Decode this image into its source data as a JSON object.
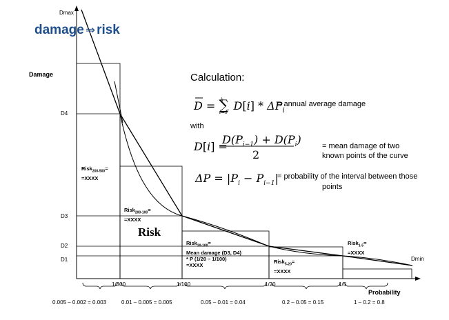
{
  "heading": {
    "left": "damage",
    "arrow": "⇒",
    "right": "risk"
  },
  "axes": {
    "y_top": "Dmax",
    "y_label": "Damage",
    "y_ticks": [
      "D4",
      "D3",
      "D2",
      "D1"
    ],
    "x_label": "Probability",
    "x_ticks": [
      "1/300",
      "1/100",
      "1/20",
      "1/5"
    ],
    "curve_end": "Dmin"
  },
  "calculation": {
    "title": "Calculation:",
    "with": "with",
    "eq1_desc": "= annual average damage",
    "eq2_desc_1": "= mean damage of two",
    "eq2_desc_2": "known points of the curve",
    "eq3_desc_1": "= probability of the interval between those",
    "eq3_desc_2": "points"
  },
  "risk_labels": {
    "r_200_500_a": "Risk",
    "r_200_500_sub": "200-500",
    "r_200_500_b": "=",
    "r_200_500_c": "=XXXX",
    "r_200_100_a": "Risk",
    "r_200_100_sub": "200-100",
    "r_200_100_b": "=",
    "r_200_100_c": "=XXXX",
    "risk_big": "Risk",
    "r_20_100_a": "Risk",
    "r_20_100_sub": "20-100",
    "r_20_100_b": "=",
    "r_20_100_l2": "Mean damage (D3, D4)",
    "r_20_100_l3": "* P (1/20 – 1/100)",
    "r_20_100_l4": "=XXXX",
    "r_5_20_a": "Risk",
    "r_5_20_sub": "5-20",
    "r_5_20_b": "=",
    "r_5_20_c": "=XXXX",
    "r_1_5_a": "Risk",
    "r_1_5_sub": "1-5",
    "r_1_5_b": "=",
    "r_1_5_c": "=XXXX"
  },
  "intervals": [
    "0.005 – 0.002 = 0.003",
    "0.01 – 0.005 = 0.005",
    "0.05 – 0.01 = 0.04",
    "0.2 – 0.05 = 0.15",
    "1 – 0.2 = 0.8"
  ]
}
